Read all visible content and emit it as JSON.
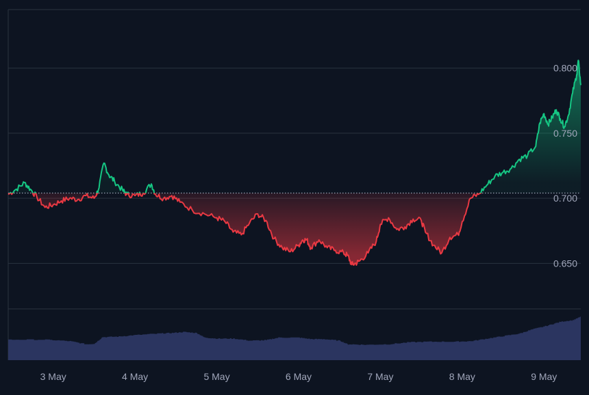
{
  "chart_data": {
    "type": "area",
    "baseline": 0.704,
    "ylim": [
      0.615,
      0.845
    ],
    "y_ticks": [
      0.65,
      0.7,
      0.75,
      0.8
    ],
    "y_tick_labels": [
      "0.650",
      "0.700",
      "0.750",
      "0.800"
    ],
    "x_range": [
      2.45,
      9.45
    ],
    "x_ticks": [
      3,
      4,
      5,
      6,
      7,
      8,
      9
    ],
    "x_tick_labels": [
      "3 May",
      "4 May",
      "5 May",
      "6 May",
      "7 May",
      "8 May",
      "9 May"
    ],
    "grid": true,
    "colors": {
      "up": "#16c784",
      "down": "#ea3943",
      "volume": "#2b3560",
      "grid": "#2a3340",
      "tick_label": "#a1a7bb",
      "background": "#0d1421"
    },
    "price_series": {
      "name": "",
      "points": [
        [
          2.45,
          0.703
        ],
        [
          2.55,
          0.707
        ],
        [
          2.65,
          0.712
        ],
        [
          2.72,
          0.707
        ],
        [
          2.8,
          0.701
        ],
        [
          2.9,
          0.693
        ],
        [
          3.0,
          0.695
        ],
        [
          3.1,
          0.698
        ],
        [
          3.2,
          0.7
        ],
        [
          3.3,
          0.699
        ],
        [
          3.4,
          0.702
        ],
        [
          3.5,
          0.7
        ],
        [
          3.55,
          0.706
        ],
        [
          3.62,
          0.727
        ],
        [
          3.68,
          0.718
        ],
        [
          3.75,
          0.713
        ],
        [
          3.85,
          0.706
        ],
        [
          3.9,
          0.703
        ],
        [
          4.0,
          0.702
        ],
        [
          4.1,
          0.704
        ],
        [
          4.2,
          0.711
        ],
        [
          4.25,
          0.703
        ],
        [
          4.35,
          0.7
        ],
        [
          4.45,
          0.702
        ],
        [
          4.55,
          0.697
        ],
        [
          4.7,
          0.691
        ],
        [
          4.85,
          0.688
        ],
        [
          5.0,
          0.685
        ],
        [
          5.1,
          0.682
        ],
        [
          5.2,
          0.674
        ],
        [
          5.3,
          0.672
        ],
        [
          5.4,
          0.681
        ],
        [
          5.5,
          0.688
        ],
        [
          5.6,
          0.683
        ],
        [
          5.7,
          0.669
        ],
        [
          5.8,
          0.662
        ],
        [
          5.9,
          0.659
        ],
        [
          6.0,
          0.664
        ],
        [
          6.05,
          0.668
        ],
        [
          6.1,
          0.668
        ],
        [
          6.15,
          0.662
        ],
        [
          6.25,
          0.668
        ],
        [
          6.35,
          0.662
        ],
        [
          6.45,
          0.66
        ],
        [
          6.55,
          0.658
        ],
        [
          6.6,
          0.656
        ],
        [
          6.65,
          0.649
        ],
        [
          6.7,
          0.65
        ],
        [
          6.75,
          0.652
        ],
        [
          6.85,
          0.658
        ],
        [
          6.95,
          0.667
        ],
        [
          7.0,
          0.68
        ],
        [
          7.1,
          0.685
        ],
        [
          7.2,
          0.676
        ],
        [
          7.3,
          0.678
        ],
        [
          7.4,
          0.684
        ],
        [
          7.5,
          0.683
        ],
        [
          7.55,
          0.674
        ],
        [
          7.65,
          0.664
        ],
        [
          7.75,
          0.658
        ],
        [
          7.85,
          0.67
        ],
        [
          7.95,
          0.672
        ],
        [
          8.0,
          0.682
        ],
        [
          8.1,
          0.7
        ],
        [
          8.2,
          0.703
        ],
        [
          8.3,
          0.71
        ],
        [
          8.4,
          0.717
        ],
        [
          8.5,
          0.72
        ],
        [
          8.6,
          0.723
        ],
        [
          8.7,
          0.73
        ],
        [
          8.8,
          0.733
        ],
        [
          8.9,
          0.74
        ],
        [
          8.95,
          0.758
        ],
        [
          9.0,
          0.765
        ],
        [
          9.05,
          0.757
        ],
        [
          9.1,
          0.762
        ],
        [
          9.15,
          0.768
        ],
        [
          9.2,
          0.761
        ],
        [
          9.25,
          0.755
        ],
        [
          9.3,
          0.764
        ],
        [
          9.35,
          0.781
        ],
        [
          9.4,
          0.795
        ],
        [
          9.42,
          0.806
        ],
        [
          9.45,
          0.787
        ]
      ]
    },
    "volume_series": {
      "name": "",
      "points": [
        [
          2.45,
          0.4
        ],
        [
          2.9,
          0.4
        ],
        [
          3.2,
          0.37
        ],
        [
          3.4,
          0.31
        ],
        [
          3.5,
          0.32
        ],
        [
          3.6,
          0.45
        ],
        [
          3.8,
          0.46
        ],
        [
          4.0,
          0.49
        ],
        [
          4.3,
          0.52
        ],
        [
          4.45,
          0.53
        ],
        [
          4.6,
          0.55
        ],
        [
          4.75,
          0.53
        ],
        [
          4.85,
          0.44
        ],
        [
          5.0,
          0.42
        ],
        [
          5.2,
          0.42
        ],
        [
          5.4,
          0.38
        ],
        [
          5.6,
          0.39
        ],
        [
          5.75,
          0.44
        ],
        [
          6.0,
          0.44
        ],
        [
          6.15,
          0.41
        ],
        [
          6.3,
          0.41
        ],
        [
          6.5,
          0.38
        ],
        [
          6.6,
          0.31
        ],
        [
          6.8,
          0.3
        ],
        [
          7.1,
          0.31
        ],
        [
          7.35,
          0.35
        ],
        [
          7.6,
          0.36
        ],
        [
          7.9,
          0.36
        ],
        [
          8.1,
          0.37
        ],
        [
          8.3,
          0.42
        ],
        [
          8.5,
          0.47
        ],
        [
          8.7,
          0.52
        ],
        [
          8.85,
          0.6
        ],
        [
          9.05,
          0.68
        ],
        [
          9.2,
          0.75
        ],
        [
          9.35,
          0.78
        ],
        [
          9.45,
          0.85
        ]
      ]
    }
  }
}
